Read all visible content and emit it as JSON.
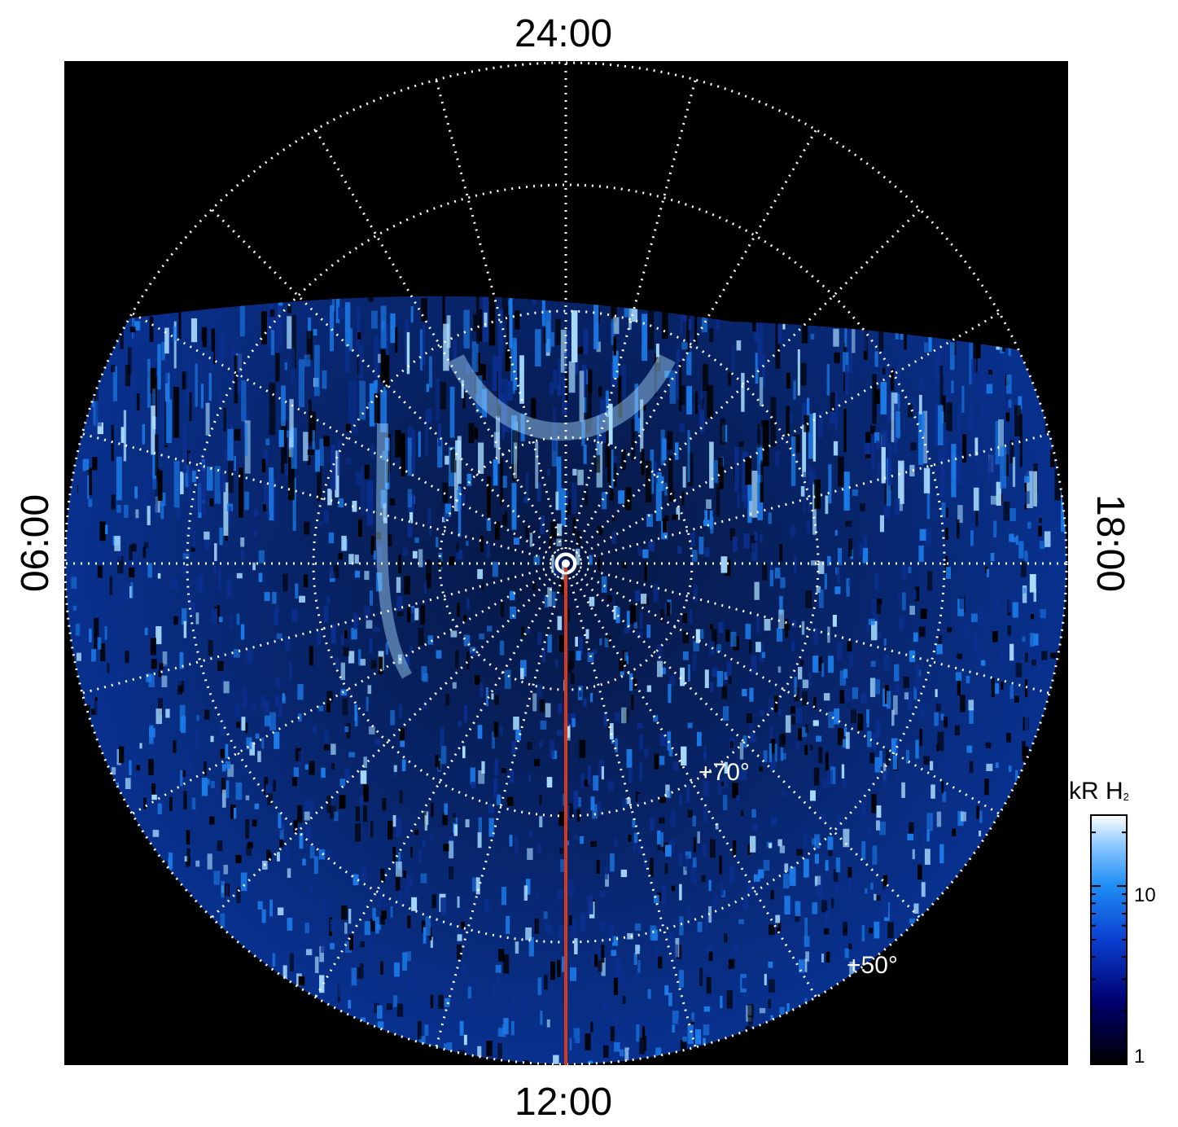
{
  "local_time_labels": {
    "top": "24:00",
    "bottom": "12:00",
    "left": "06:00",
    "right": "18:00"
  },
  "latitude_labels": {
    "inner": "+70°",
    "outer": "+50°"
  },
  "colorbar": {
    "title_main": "kR H",
    "title_sub": "2",
    "ticks": [
      "10",
      "1"
    ],
    "scale": "log",
    "colors": [
      "#000000",
      "#00006e",
      "#0a3fd0",
      "#1f8ff5",
      "#8cc8ff",
      "#ffffff"
    ]
  },
  "colors": {
    "background": "#000000",
    "grid": "#ffffff",
    "meridian_line": "#d8391a",
    "emission_dim": "#0b2f8f",
    "emission_mid": "#1c7be8",
    "emission_bright": "#a9dcff"
  }
}
